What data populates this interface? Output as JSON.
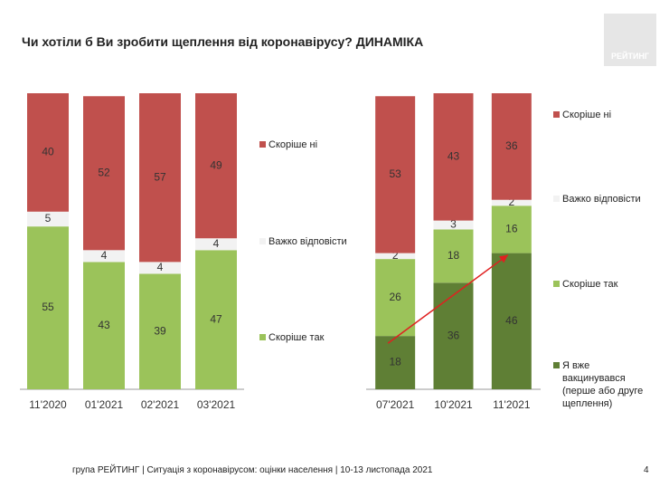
{
  "title": "Чи хотіли б Ви зробити щеплення від коронавірусу? ДИНАМІКА",
  "logo": "РЕЙТИНГ",
  "footer": "група РЕЙТИНГ | Ситуація з коронавірусом: оцінки населення | 10-13 листопада 2021",
  "page_number": "4",
  "chart_data": [
    {
      "type": "bar",
      "stacked": true,
      "ylim": [
        0,
        100
      ],
      "categories": [
        "11'2020",
        "01'2021",
        "02'2021",
        "03'2021"
      ],
      "series": [
        {
          "name": "Скоріше так",
          "color": "#9bc35a",
          "values": [
            55,
            43,
            39,
            47
          ]
        },
        {
          "name": "Важко відповісти",
          "color": "#f2f2f2",
          "values": [
            5,
            4,
            4,
            4
          ]
        },
        {
          "name": "Скоріше ні",
          "color": "#c0504d",
          "values": [
            40,
            52,
            57,
            49
          ]
        }
      ]
    },
    {
      "type": "bar",
      "stacked": true,
      "ylim": [
        0,
        100
      ],
      "categories": [
        "07'2021",
        "10'2021",
        "11'2021"
      ],
      "series": [
        {
          "name": "Я вже вакцинувався (перше або друге щеплення)",
          "color": "#5f7f35",
          "values": [
            18,
            36,
            46
          ]
        },
        {
          "name": "Скоріше так",
          "color": "#9bc35a",
          "values": [
            26,
            18,
            16
          ]
        },
        {
          "name": "Важко відповісти",
          "color": "#f2f2f2",
          "values": [
            2,
            3,
            2
          ]
        },
        {
          "name": "Скоріше ні",
          "color": "#c0504d",
          "values": [
            53,
            43,
            36
          ]
        }
      ]
    }
  ]
}
